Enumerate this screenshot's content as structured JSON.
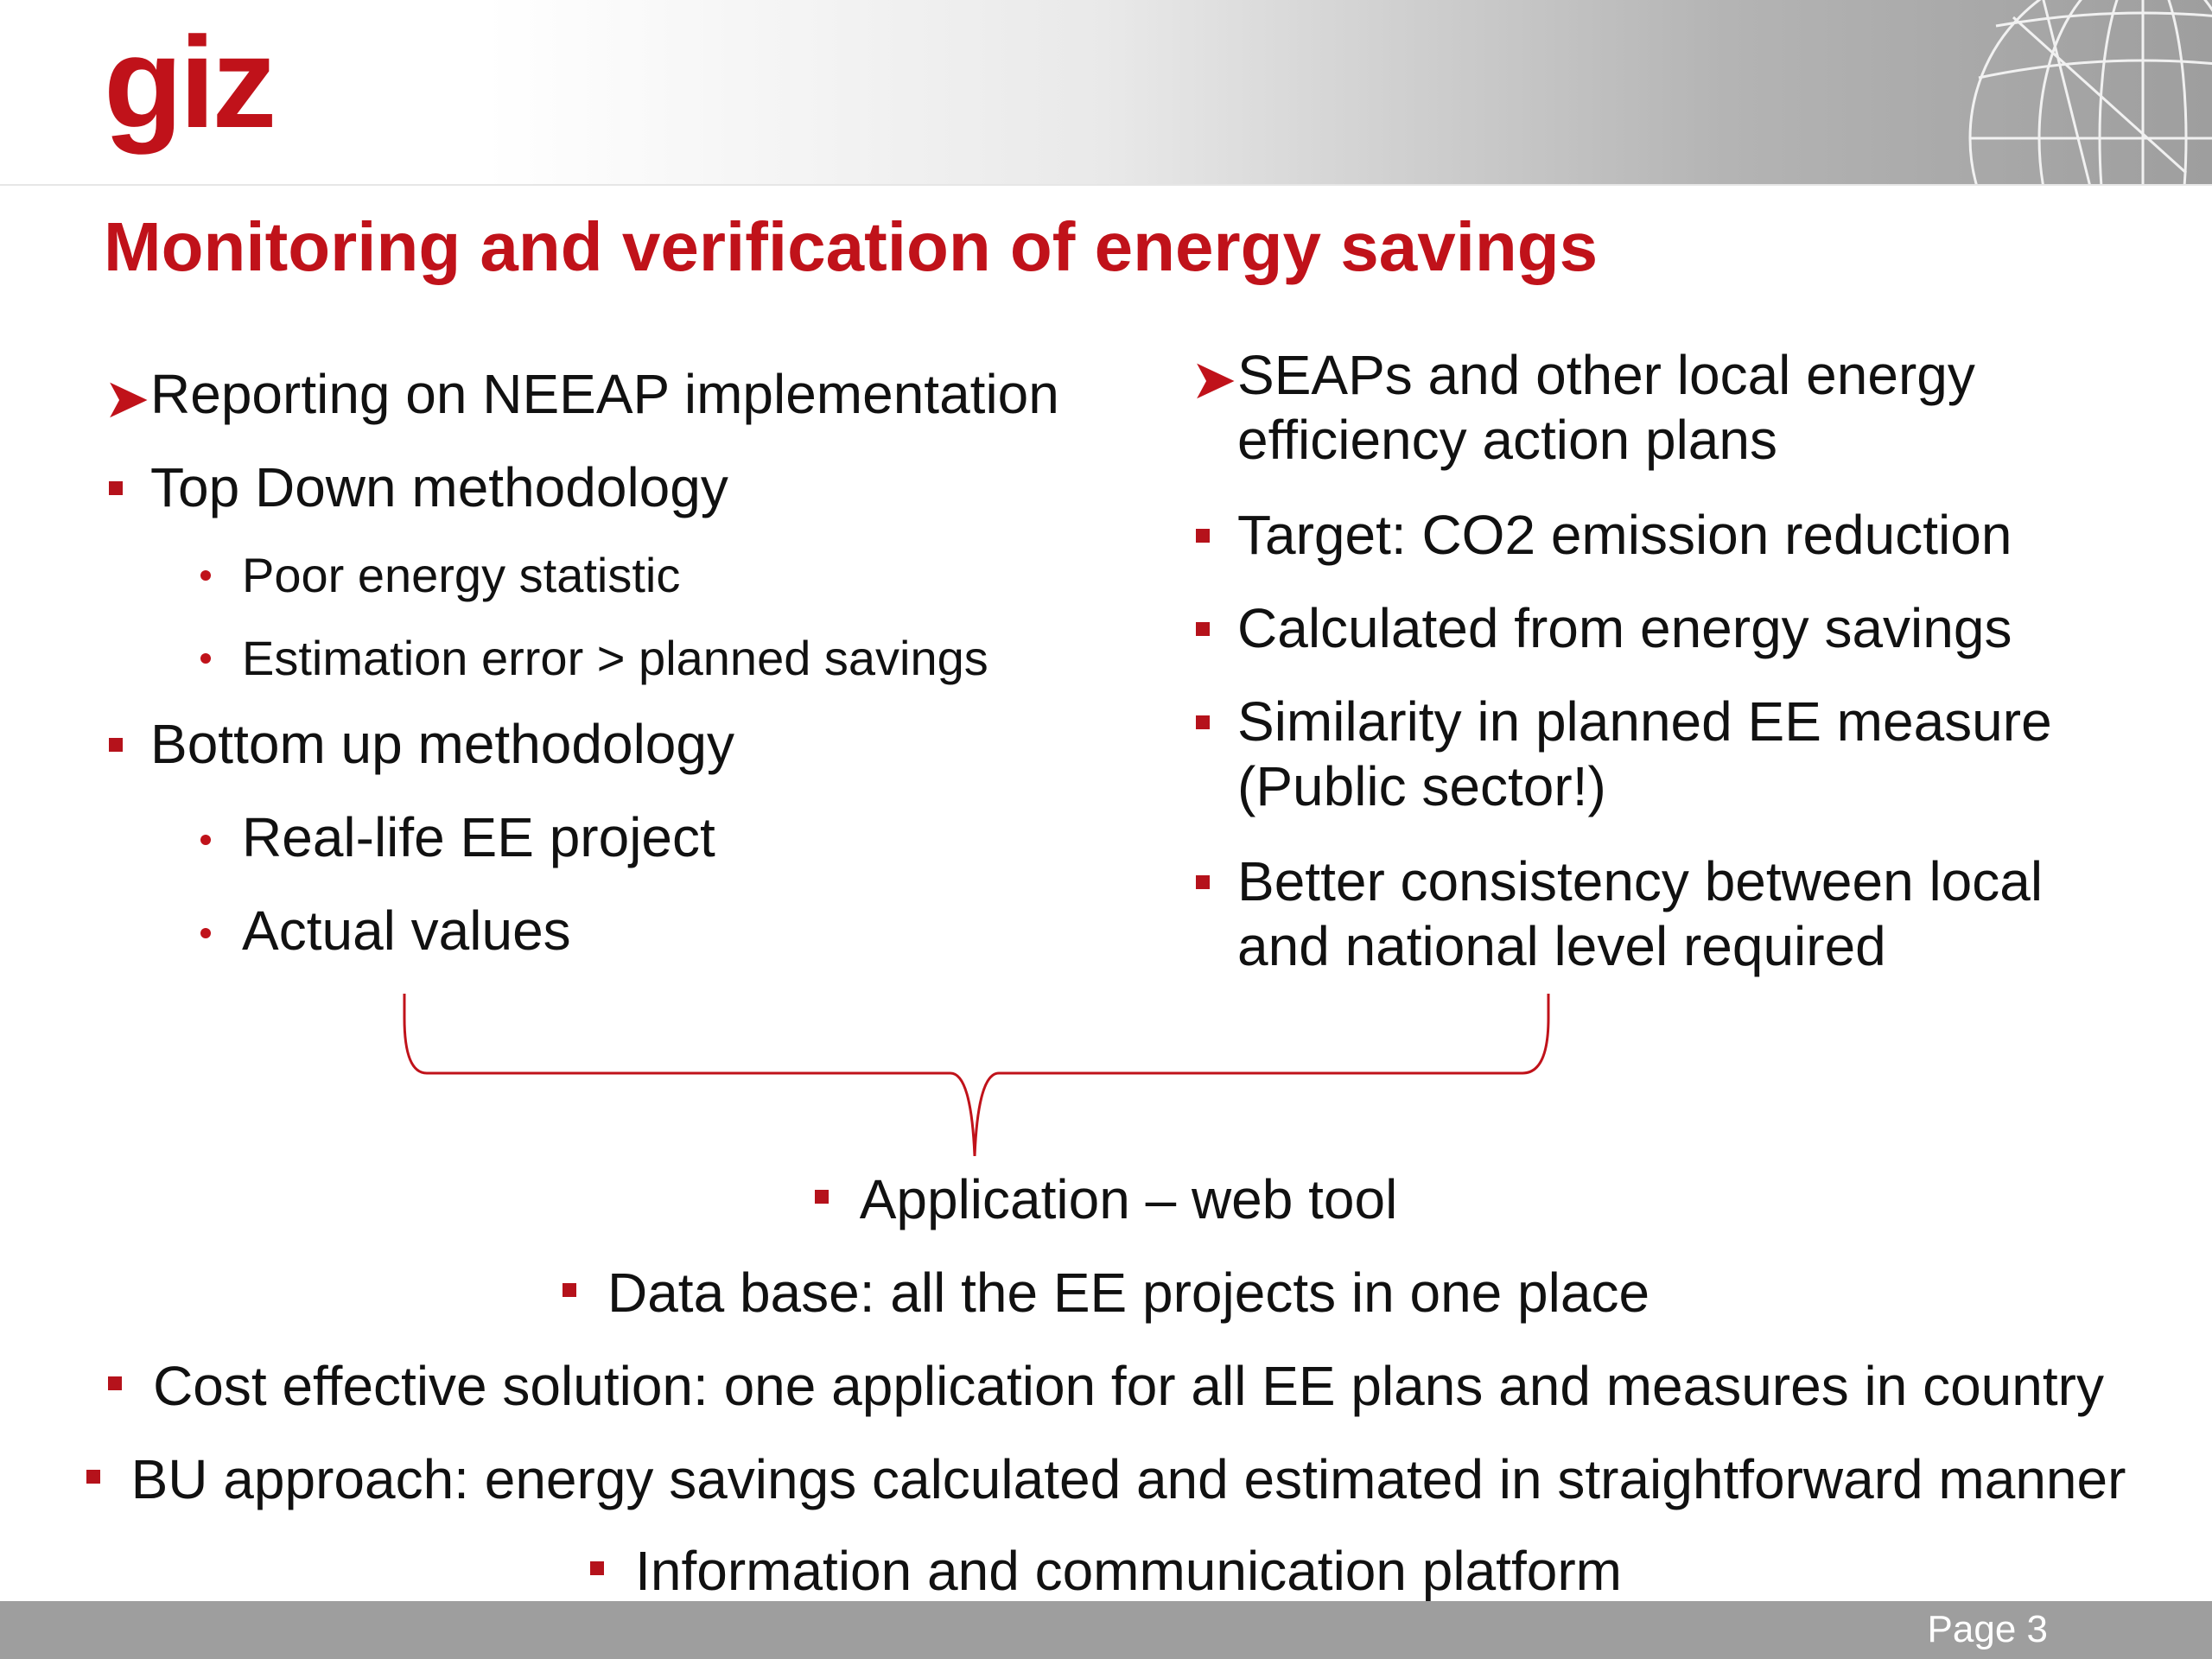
{
  "header": {
    "logo_text": "giz",
    "title": "Monitoring and verification of energy savings"
  },
  "left_column": {
    "heading": "Reporting on NEEAP implementation",
    "items": [
      {
        "text": "Top Down methodology"
      },
      {
        "text": "Poor energy statistic"
      },
      {
        "text": "Estimation error > planned savings"
      },
      {
        "text": "Bottom up methodology"
      },
      {
        "text": "Real-life EE project"
      },
      {
        "text": "Actual values"
      }
    ]
  },
  "right_column": {
    "heading_line1": "SEAPs and other local energy",
    "heading_line2": "efficiency action plans",
    "items": [
      {
        "line1": "Target: CO2 emission reduction"
      },
      {
        "line1": "Calculated from energy savings"
      },
      {
        "line1": "Similarity in planned EE measure",
        "line2": "(Public sector!)"
      },
      {
        "line1": "Better consistency between local",
        "line2": "and national level required"
      }
    ]
  },
  "conclusions": [
    "Application – web tool",
    "Data base: all the EE projects in one place",
    "Cost effective solution: one application for all EE plans and measures in country",
    "BU approach: energy savings calculated and estimated in straightforward manner",
    "Information and communication platform"
  ],
  "footer": {
    "page_label": "Page 3"
  },
  "colors": {
    "accent_red": "#c0121a",
    "bullet_red": "#b5121b",
    "footer_gray": "#9e9e9e"
  }
}
